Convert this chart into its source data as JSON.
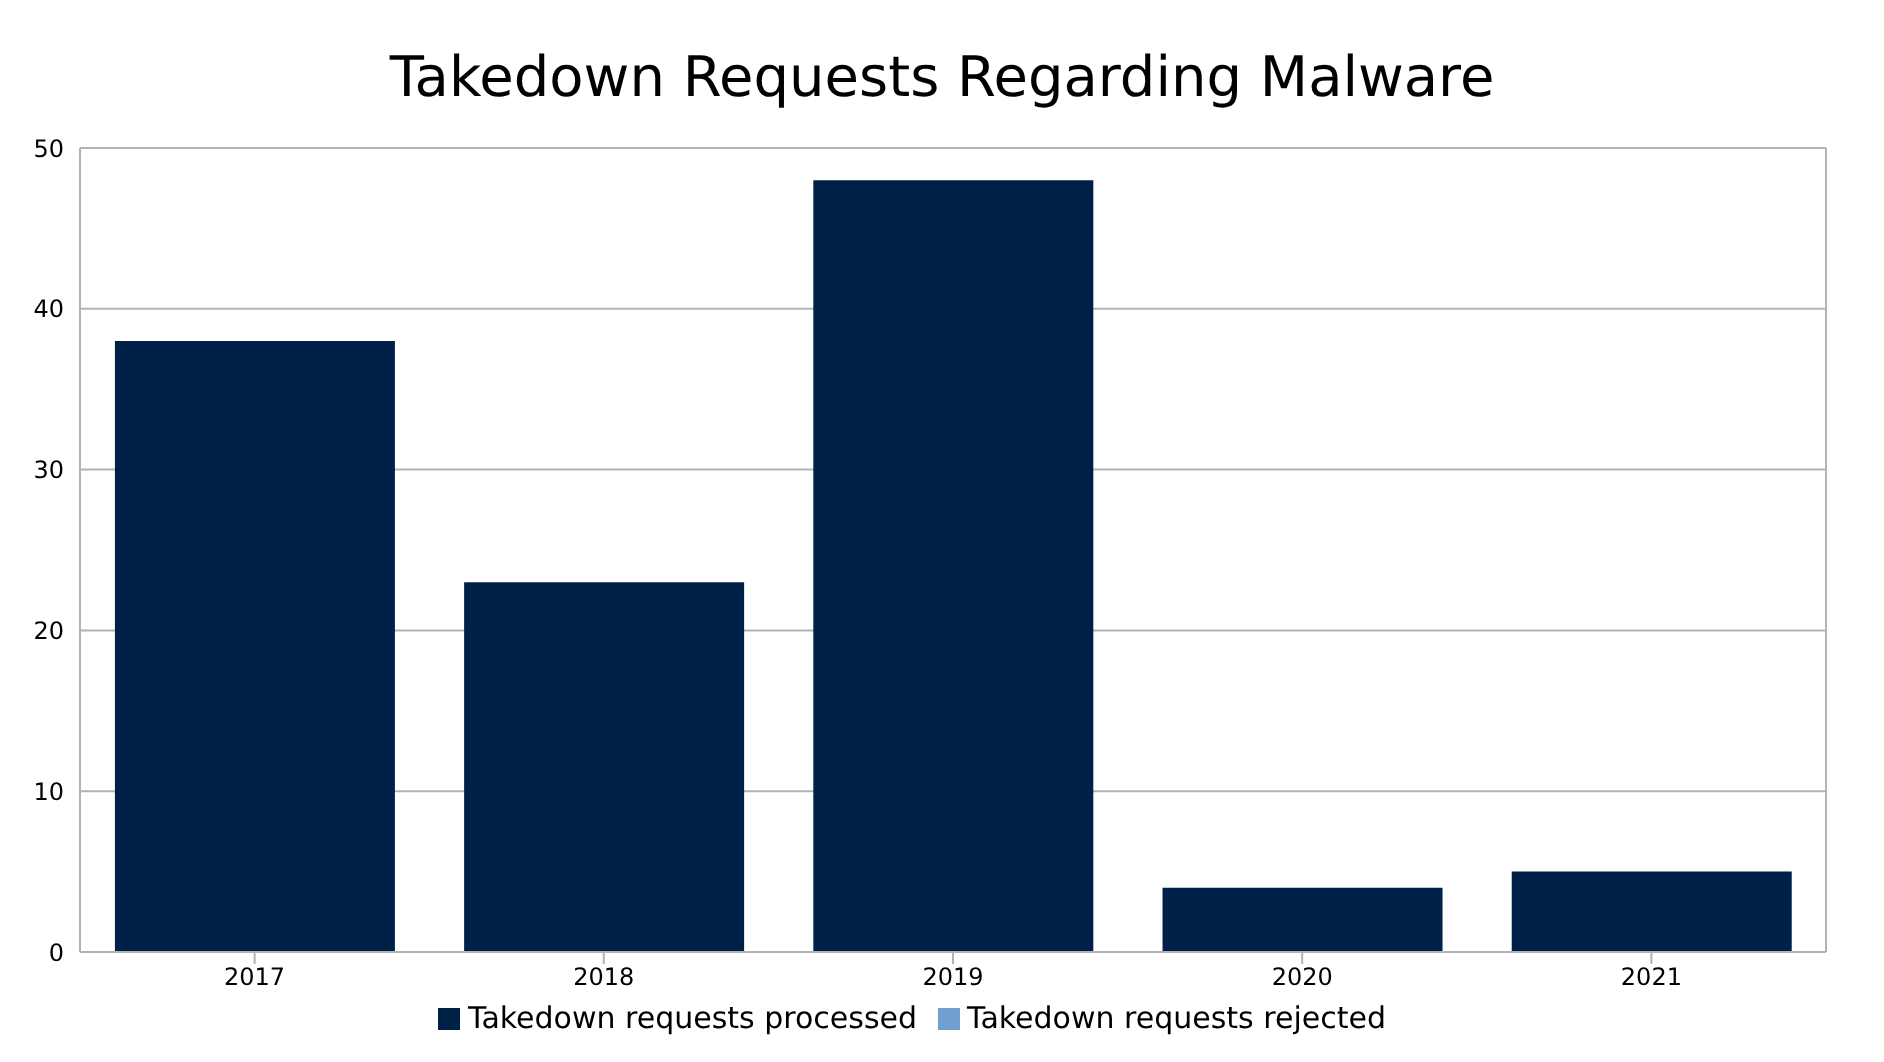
{
  "chart_data": {
    "type": "bar",
    "title": "Takedown Requests Regarding Malware",
    "categories": [
      "2017",
      "2018",
      "2019",
      "2020",
      "2021"
    ],
    "stacked": true,
    "series": [
      {
        "name": "Takedown requests processed",
        "color": "#002147",
        "values": [
          38,
          23,
          48,
          4,
          5
        ]
      },
      {
        "name": "Takedown requests rejected",
        "color": "#729fcf",
        "values": [
          0,
          0,
          0,
          0,
          0
        ]
      }
    ],
    "ylim": [
      0,
      50
    ],
    "yticks": [
      0,
      10,
      20,
      30,
      40,
      50
    ],
    "grid": "y",
    "legend": "bottom"
  }
}
